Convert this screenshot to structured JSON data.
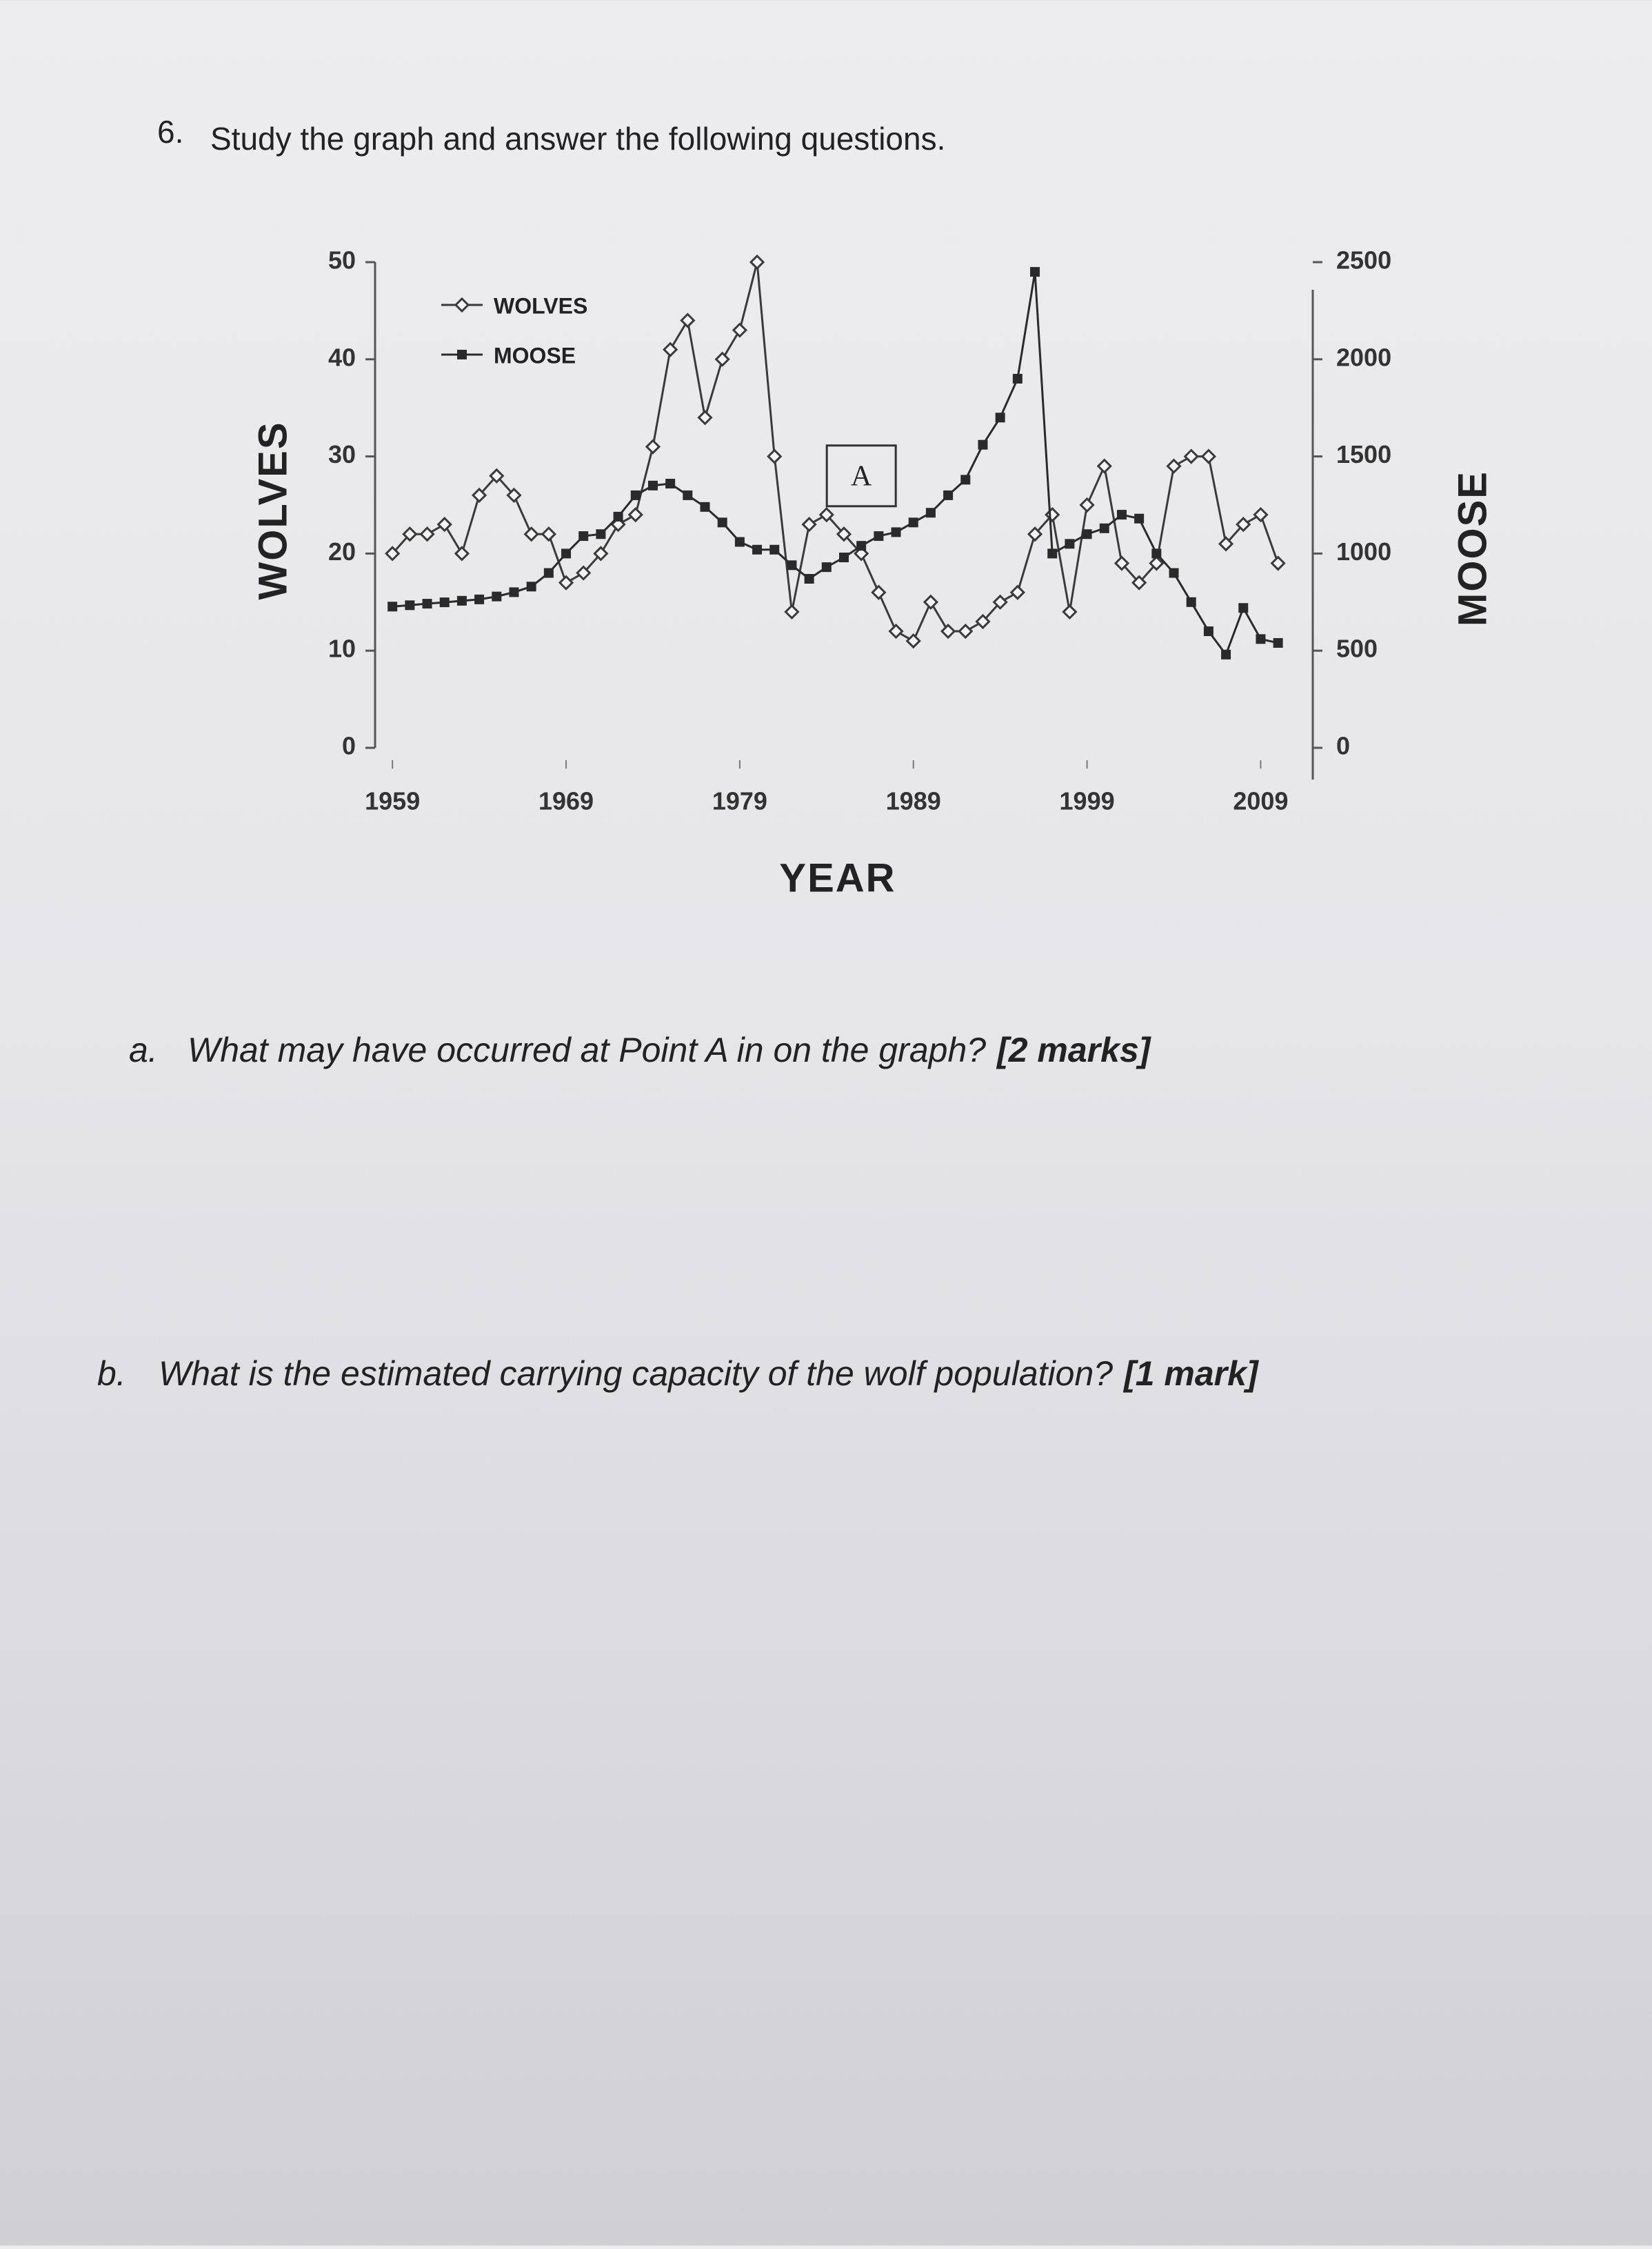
{
  "question": {
    "number": "6.",
    "text": "Study the graph and answer the following questions."
  },
  "chart_data": {
    "type": "line",
    "xlabel": "YEAR",
    "ylabel": "WOLVES",
    "y2label": "MOOSE",
    "x": [
      1959,
      1960,
      1961,
      1962,
      1963,
      1964,
      1965,
      1966,
      1967,
      1968,
      1969,
      1970,
      1971,
      1972,
      1973,
      1974,
      1975,
      1976,
      1977,
      1978,
      1979,
      1980,
      1981,
      1982,
      1983,
      1984,
      1985,
      1986,
      1987,
      1988,
      1989,
      1990,
      1991,
      1992,
      1993,
      1994,
      1995,
      1996,
      1997,
      1998,
      1999,
      2000,
      2001,
      2002,
      2003,
      2004,
      2005,
      2006,
      2007,
      2008,
      2009,
      2010
    ],
    "xlim": [
      1958,
      2012
    ],
    "xticks": [
      1959,
      1969,
      1979,
      1989,
      1999,
      2009
    ],
    "ylim": [
      0,
      50
    ],
    "yticks": [
      0,
      10,
      20,
      30,
      40,
      50
    ],
    "y2lim": [
      0,
      2500
    ],
    "y2ticks": [
      0,
      500,
      1000,
      1500,
      2000,
      2500
    ],
    "legend": "top-left",
    "series": [
      {
        "name": "WOLVES",
        "color": "#3a3a3a",
        "marker": "open-diamond",
        "values": [
          20,
          22,
          22,
          23,
          20,
          26,
          28,
          26,
          22,
          22,
          17,
          18,
          20,
          23,
          24,
          31,
          41,
          44,
          34,
          40,
          43,
          50,
          30,
          14,
          23,
          24,
          22,
          20,
          16,
          12,
          11,
          15,
          12,
          12,
          13,
          15,
          16,
          22,
          24,
          14,
          25,
          29,
          19,
          17,
          19,
          29,
          30,
          30,
          21,
          23,
          24,
          19
        ]
      },
      {
        "name": "MOOSE",
        "color": "#2a2a2a",
        "marker": "filled-square",
        "axis": "y2",
        "values": [
          727,
          734,
          742,
          749,
          757,
          764,
          779,
          801,
          830,
          900,
          1000,
          1090,
          1100,
          1190,
          1300,
          1350,
          1360,
          1300,
          1240,
          1160,
          1060,
          1020,
          1020,
          940,
          870,
          930,
          980,
          1040,
          1090,
          1110,
          1160,
          1210,
          1300,
          1380,
          1560,
          1700,
          1900,
          2450,
          1000,
          1050,
          1100,
          1130,
          1200,
          1180,
          1000,
          900,
          750,
          600,
          480,
          720,
          560,
          540
        ]
      }
    ],
    "annotation": {
      "text": "A",
      "x": 1986,
      "y": 1400,
      "axis": "y2"
    }
  },
  "parts": [
    {
      "label": "a.",
      "text": "What may have occurred at Point A in on the graph?",
      "marks": "[2 marks]"
    },
    {
      "label": "b.",
      "text": "What is the estimated carrying capacity of the wolf population?",
      "marks": "[1 mark]"
    }
  ]
}
